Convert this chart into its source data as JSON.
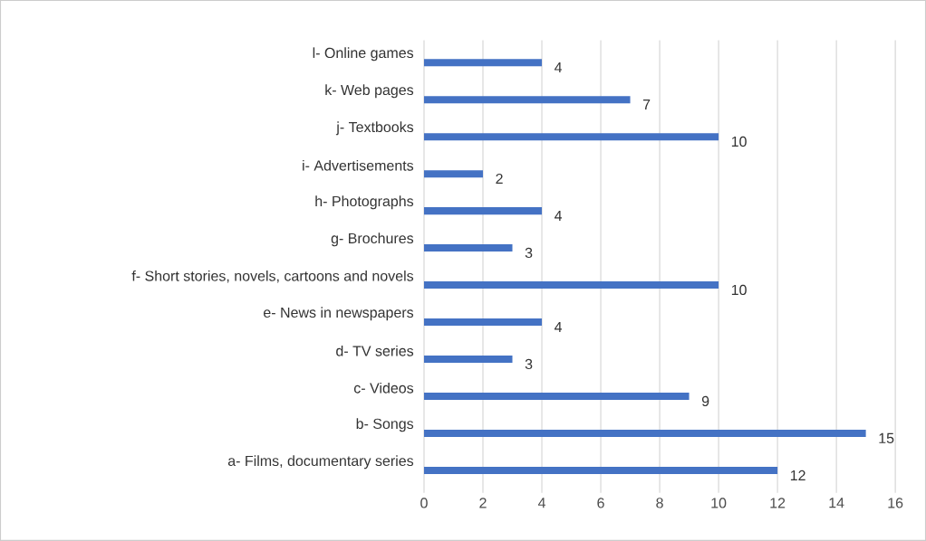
{
  "chart_data": {
    "type": "bar",
    "orientation": "horizontal",
    "categories": [
      "l- Online games",
      "k- Web pages",
      "j- Textbooks",
      "i- Advertisements",
      "h- Photographs",
      "g- Brochures",
      "f- Short stories, novels, cartoons and novels",
      "e- News in newspapers",
      "d- TV series",
      "c- Videos",
      "b- Songs",
      "a- Films, documentary series"
    ],
    "values": [
      4,
      7,
      10,
      2,
      4,
      3,
      10,
      4,
      3,
      9,
      15,
      12
    ],
    "color": "#4472c4",
    "data_labels": true,
    "grid": "x",
    "xlim": [
      0,
      16
    ],
    "xticks": [
      0,
      2,
      4,
      6,
      8,
      10,
      12,
      14,
      16
    ]
  }
}
